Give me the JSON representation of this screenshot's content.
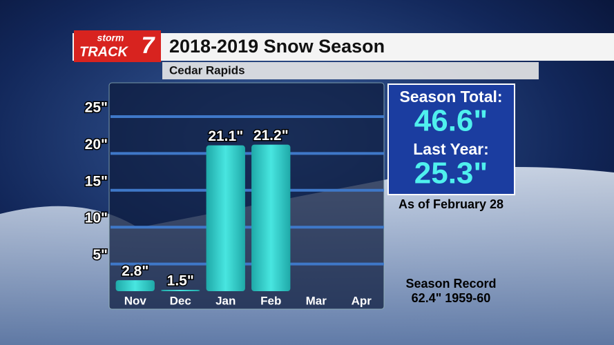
{
  "logo": {
    "top": "storm",
    "bottom": "TRACK",
    "number": "7"
  },
  "chart_data": {
    "type": "bar",
    "title": "2018-2019 Snow Season",
    "subtitle": "Cedar Rapids",
    "categories": [
      "Nov",
      "Dec",
      "Jan",
      "Feb",
      "Mar",
      "Apr"
    ],
    "values": [
      2.8,
      1.5,
      21.1,
      21.2,
      null,
      null
    ],
    "value_labels": [
      "2.8\"",
      "1.5\"",
      "21.1\"",
      "21.2\"",
      null,
      null
    ],
    "color": "#38d6d2",
    "ylim": [
      0,
      29.4
    ],
    "yticks": [
      {
        "value": 5,
        "label": "5\""
      },
      {
        "value": 10,
        "label": "10\""
      },
      {
        "value": 15,
        "label": "15\""
      },
      {
        "value": 20,
        "label": "20\""
      },
      {
        "value": 25,
        "label": "25\""
      }
    ],
    "grid": true
  },
  "sidebar": {
    "total_label": "Season Total:",
    "total": "46.6\"",
    "last_label": "Last Year:",
    "last": "25.3\"",
    "as_of": "As of February 28",
    "record_label": "Season Record",
    "record": "62.4\" 1959-60"
  }
}
